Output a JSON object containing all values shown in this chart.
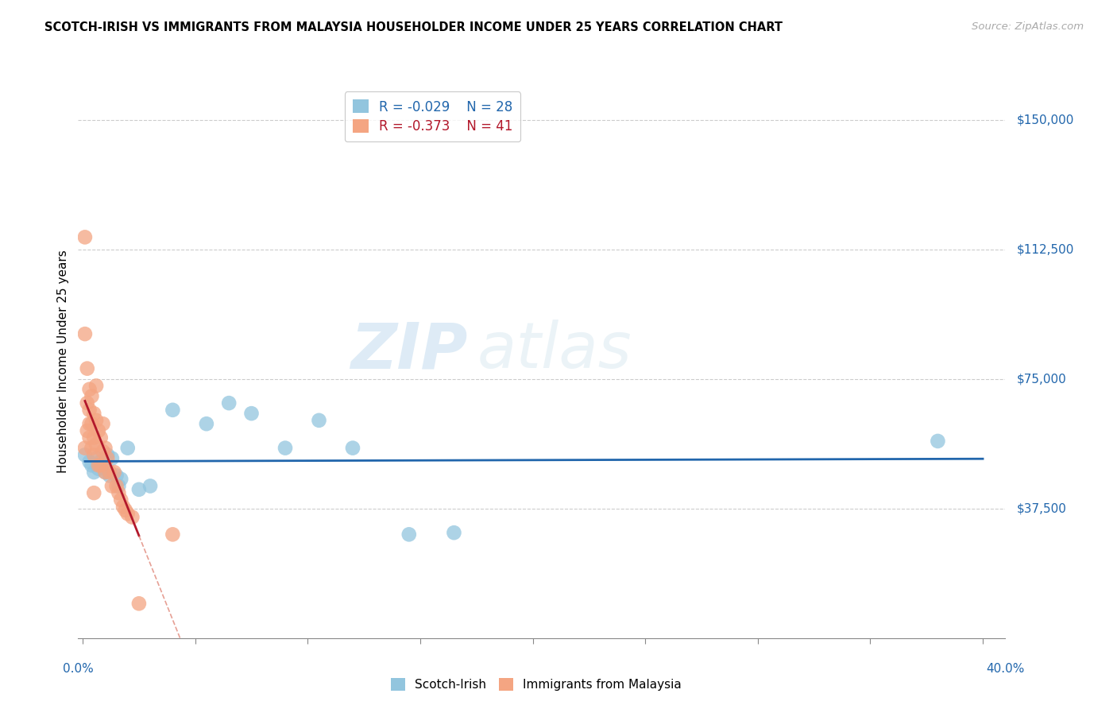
{
  "title": "SCOTCH-IRISH VS IMMIGRANTS FROM MALAYSIA HOUSEHOLDER INCOME UNDER 25 YEARS CORRELATION CHART",
  "source": "Source: ZipAtlas.com",
  "ylabel": "Householder Income Under 25 years",
  "watermark_zip": "ZIP",
  "watermark_atlas": "atlas",
  "legend_blue_r": "-0.029",
  "legend_blue_n": "28",
  "legend_pink_r": "-0.373",
  "legend_pink_n": "41",
  "ytick_labels": [
    "$37,500",
    "$75,000",
    "$112,500",
    "$150,000"
  ],
  "ytick_values": [
    37500,
    75000,
    112500,
    150000
  ],
  "ylim": [
    0,
    160000
  ],
  "xlim": [
    -0.002,
    0.41
  ],
  "blue_color": "#92c5de",
  "blue_line_color": "#2166ac",
  "pink_color": "#f4a582",
  "pink_line_color": "#b2182b",
  "pink_line_dashed_color": "#d6604d",
  "blue_scatter_x": [
    0.001,
    0.003,
    0.004,
    0.005,
    0.006,
    0.007,
    0.008,
    0.009,
    0.01,
    0.011,
    0.012,
    0.013,
    0.015,
    0.016,
    0.017,
    0.02,
    0.025,
    0.03,
    0.04,
    0.055,
    0.065,
    0.075,
    0.09,
    0.105,
    0.12,
    0.145,
    0.165,
    0.38
  ],
  "blue_scatter_y": [
    53000,
    51000,
    50000,
    48000,
    52000,
    49000,
    51000,
    50000,
    48000,
    53000,
    47000,
    52000,
    47000,
    44000,
    46000,
    55000,
    43000,
    44000,
    66000,
    62000,
    68000,
    65000,
    55000,
    63000,
    55000,
    30000,
    30500,
    57000
  ],
  "pink_scatter_x": [
    0.001,
    0.001,
    0.001,
    0.002,
    0.002,
    0.002,
    0.003,
    0.003,
    0.003,
    0.003,
    0.004,
    0.004,
    0.004,
    0.005,
    0.005,
    0.005,
    0.006,
    0.006,
    0.006,
    0.007,
    0.007,
    0.008,
    0.008,
    0.009,
    0.009,
    0.01,
    0.01,
    0.011,
    0.012,
    0.013,
    0.014,
    0.015,
    0.016,
    0.017,
    0.018,
    0.019,
    0.02,
    0.022,
    0.025,
    0.04,
    0.005
  ],
  "pink_scatter_y": [
    116000,
    88000,
    55000,
    78000,
    68000,
    60000,
    72000,
    66000,
    62000,
    58000,
    70000,
    62000,
    55000,
    65000,
    58000,
    53000,
    73000,
    63000,
    56000,
    60000,
    50000,
    58000,
    50000,
    62000,
    54000,
    55000,
    48000,
    52000,
    48000,
    44000,
    48000,
    44000,
    42000,
    40000,
    38000,
    37000,
    36000,
    35000,
    10000,
    30000,
    42000
  ]
}
